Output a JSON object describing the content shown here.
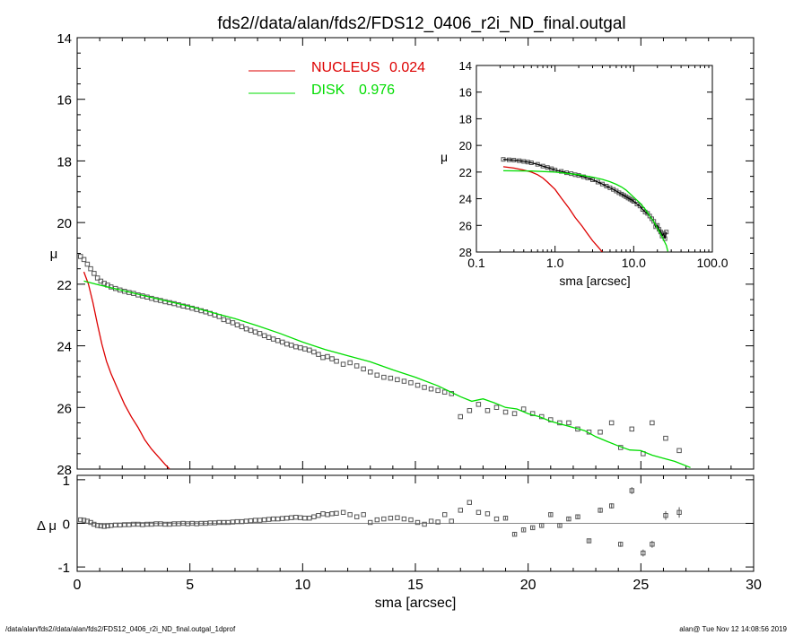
{
  "footer": {
    "left": "/data/alan/fds2//data/alan/fds2/FDS12_0406_r2i_ND_final.outgal_1dprof",
    "right": "alan@  Tue Nov 12 14:08:56 2019"
  },
  "colors": {
    "nucleus": "#dd0000",
    "disk": "#00dd00",
    "data": "#555555",
    "axis": "#000000"
  },
  "chart_data": [
    {
      "type": "scatter",
      "panel": "main",
      "title": "fds2//data/alan/fds2/FDS12_0406_r2i_ND_final.outgal",
      "xlabel": "",
      "ylabel": "μ",
      "xlim": [
        0,
        30
      ],
      "ylim": [
        28,
        14
      ],
      "xticks": [
        0,
        5,
        10,
        15,
        20,
        25,
        30
      ],
      "yticks": [
        14,
        16,
        18,
        20,
        22,
        24,
        26,
        28
      ],
      "legend": [
        {
          "label": "NUCLEUS",
          "value": "0.024",
          "color": "#dd0000"
        },
        {
          "label": "DISK",
          "value": "0.976",
          "color": "#00dd00"
        }
      ],
      "series": [
        {
          "name": "data",
          "x": [
            0.15,
            0.3,
            0.45,
            0.6,
            0.75,
            0.9,
            1.05,
            1.2,
            1.35,
            1.5,
            1.7,
            1.9,
            2.1,
            2.3,
            2.5,
            2.7,
            2.9,
            3.1,
            3.3,
            3.5,
            3.7,
            3.9,
            4.1,
            4.3,
            4.5,
            4.7,
            4.9,
            5.1,
            5.3,
            5.5,
            5.7,
            5.9,
            6.1,
            6.3,
            6.5,
            6.7,
            6.9,
            7.1,
            7.3,
            7.5,
            7.7,
            7.9,
            8.1,
            8.3,
            8.5,
            8.7,
            8.9,
            9.1,
            9.3,
            9.5,
            9.7,
            9.9,
            10.1,
            10.3,
            10.5,
            10.7,
            10.9,
            11.1,
            11.3,
            11.5,
            11.8,
            12.1,
            12.4,
            12.7,
            13.0,
            13.3,
            13.6,
            13.9,
            14.2,
            14.5,
            14.8,
            15.1,
            15.4,
            15.7,
            16.0,
            16.3,
            16.6,
            17.0,
            17.4,
            17.8,
            18.2,
            18.6,
            19.0,
            19.4,
            19.8,
            20.2,
            20.6,
            21.0,
            21.4,
            21.8,
            22.2,
            22.7,
            23.2,
            23.7,
            24.1,
            24.6,
            25.1,
            25.5,
            26.1,
            26.7
          ],
          "y": [
            21.1,
            21.2,
            21.35,
            21.5,
            21.65,
            21.8,
            21.9,
            21.97,
            22.03,
            22.09,
            22.14,
            22.19,
            22.23,
            22.27,
            22.3,
            22.35,
            22.38,
            22.42,
            22.46,
            22.5,
            22.53,
            22.57,
            22.6,
            22.63,
            22.67,
            22.71,
            22.74,
            22.78,
            22.82,
            22.86,
            22.9,
            22.95,
            23.0,
            23.05,
            23.15,
            23.2,
            23.25,
            23.32,
            23.38,
            23.45,
            23.5,
            23.55,
            23.6,
            23.67,
            23.73,
            23.78,
            23.83,
            23.88,
            23.94,
            23.98,
            24.03,
            24.06,
            24.1,
            24.14,
            24.2,
            24.28,
            24.38,
            24.35,
            24.42,
            24.5,
            24.6,
            24.55,
            24.65,
            24.75,
            24.85,
            24.95,
            25.02,
            25.05,
            25.1,
            25.15,
            25.2,
            25.28,
            25.35,
            25.4,
            25.45,
            25.5,
            25.55,
            26.3,
            26.1,
            25.9,
            26.1,
            26.0,
            26.15,
            26.2,
            26.05,
            26.2,
            26.3,
            26.4,
            26.5,
            26.5,
            26.7,
            26.8,
            26.8,
            26.5,
            27.3,
            26.7,
            27.5,
            26.5,
            27.0,
            27.4
          ]
        },
        {
          "name": "NUCLEUS",
          "x": [
            0.3,
            0.5,
            0.7,
            0.9,
            1.1,
            1.3,
            1.5,
            1.8,
            2.1,
            2.4,
            2.7,
            3.0,
            3.3,
            3.6,
            3.9,
            4.1
          ],
          "y": [
            21.6,
            22.0,
            22.6,
            23.3,
            23.95,
            24.5,
            24.9,
            25.4,
            25.9,
            26.3,
            26.65,
            27.05,
            27.35,
            27.6,
            27.85,
            28.0
          ]
        },
        {
          "name": "DISK",
          "x": [
            0.3,
            1.0,
            2.0,
            3.0,
            4.0,
            5.0,
            6.0,
            7.0,
            8.0,
            9.0,
            10.0,
            11.0,
            12.0,
            13.0,
            14.0,
            15.0,
            16.0,
            17.0,
            17.5,
            18.0,
            18.5,
            19.0,
            19.5,
            20.0,
            20.5,
            21.0,
            21.5,
            22.0,
            22.5,
            23.0,
            23.5,
            24.0,
            24.5,
            25.0,
            25.5,
            26.0,
            26.5,
            27.2
          ],
          "y": [
            21.9,
            22.03,
            22.2,
            22.38,
            22.55,
            22.72,
            22.92,
            23.12,
            23.35,
            23.6,
            23.88,
            24.12,
            24.32,
            24.52,
            24.78,
            25.02,
            25.3,
            25.65,
            25.8,
            25.72,
            25.85,
            26.0,
            26.05,
            26.2,
            26.3,
            26.45,
            26.55,
            26.65,
            26.75,
            26.95,
            27.1,
            27.25,
            27.38,
            27.4,
            27.55,
            27.65,
            27.75,
            27.95
          ]
        }
      ]
    },
    {
      "type": "scatter",
      "panel": "residual",
      "xlabel": "sma [arcsec]",
      "ylabel": "Δ μ",
      "xlim": [
        0,
        30
      ],
      "ylim": [
        -1.1,
        1.1
      ],
      "xticks": [
        0,
        5,
        10,
        15,
        20,
        25,
        30
      ],
      "yticks": [
        -1,
        0,
        1
      ],
      "series": [
        {
          "name": "residual",
          "x": [
            0.15,
            0.3,
            0.45,
            0.6,
            0.75,
            0.9,
            1.05,
            1.2,
            1.35,
            1.5,
            1.7,
            1.9,
            2.1,
            2.3,
            2.5,
            2.7,
            2.9,
            3.1,
            3.3,
            3.5,
            3.7,
            3.9,
            4.1,
            4.3,
            4.5,
            4.7,
            4.9,
            5.1,
            5.3,
            5.5,
            5.7,
            5.9,
            6.1,
            6.3,
            6.5,
            6.7,
            6.9,
            7.1,
            7.3,
            7.5,
            7.7,
            7.9,
            8.1,
            8.3,
            8.5,
            8.7,
            8.9,
            9.1,
            9.3,
            9.5,
            9.7,
            9.9,
            10.1,
            10.3,
            10.5,
            10.7,
            10.9,
            11.1,
            11.3,
            11.5,
            11.8,
            12.1,
            12.4,
            12.7,
            13.0,
            13.3,
            13.6,
            13.9,
            14.2,
            14.5,
            14.8,
            15.1,
            15.4,
            15.7,
            16.0,
            16.3,
            16.6,
            17.0,
            17.4,
            17.8,
            18.2,
            18.6,
            19.0,
            19.4,
            19.8,
            20.2,
            20.6,
            21.0,
            21.4,
            21.8,
            22.2,
            22.7,
            23.2,
            23.7,
            24.1,
            24.6,
            25.1,
            25.5,
            26.1,
            26.7
          ],
          "y": [
            0.08,
            0.07,
            0.05,
            0.02,
            -0.02,
            -0.05,
            -0.06,
            -0.07,
            -0.06,
            -0.05,
            -0.04,
            -0.04,
            -0.03,
            -0.03,
            -0.02,
            -0.02,
            -0.03,
            -0.02,
            -0.02,
            -0.01,
            -0.01,
            -0.02,
            -0.02,
            -0.01,
            -0.01,
            0.0,
            -0.01,
            0.0,
            -0.01,
            0.0,
            0.0,
            0.01,
            0.01,
            0.02,
            0.02,
            0.02,
            0.03,
            0.04,
            0.04,
            0.05,
            0.06,
            0.07,
            0.07,
            0.08,
            0.09,
            0.1,
            0.1,
            0.11,
            0.12,
            0.13,
            0.14,
            0.13,
            0.12,
            0.12,
            0.15,
            0.18,
            0.22,
            0.2,
            0.22,
            0.23,
            0.25,
            0.2,
            0.15,
            0.2,
            0.02,
            0.08,
            0.1,
            0.12,
            0.13,
            0.1,
            0.08,
            0.02,
            -0.02,
            0.05,
            0.03,
            0.2,
            0.05,
            0.3,
            0.48,
            0.25,
            0.22,
            0.1,
            0.12,
            -0.25,
            -0.15,
            -0.1,
            -0.05,
            0.2,
            -0.05,
            0.1,
            0.15,
            -0.4,
            0.3,
            0.4,
            -0.48,
            0.75,
            -0.68,
            -0.48,
            0.18,
            0.25
          ],
          "err": [
            0.01,
            0.01,
            0.01,
            0.01,
            0.01,
            0.01,
            0.01,
            0.01,
            0.01,
            0.01,
            0.01,
            0.01,
            0.01,
            0.01,
            0.01,
            0.01,
            0.01,
            0.01,
            0.01,
            0.01,
            0.01,
            0.01,
            0.01,
            0.01,
            0.01,
            0.01,
            0.01,
            0.01,
            0.01,
            0.01,
            0.01,
            0.01,
            0.01,
            0.01,
            0.01,
            0.01,
            0.01,
            0.01,
            0.01,
            0.01,
            0.01,
            0.01,
            0.01,
            0.01,
            0.01,
            0.01,
            0.01,
            0.01,
            0.01,
            0.01,
            0.01,
            0.01,
            0.01,
            0.01,
            0.01,
            0.01,
            0.01,
            0.01,
            0.01,
            0.01,
            0.01,
            0.01,
            0.01,
            0.01,
            0.01,
            0.01,
            0.01,
            0.01,
            0.01,
            0.01,
            0.01,
            0.01,
            0.01,
            0.01,
            0.01,
            0.01,
            0.01,
            0.02,
            0.02,
            0.02,
            0.02,
            0.02,
            0.03,
            0.03,
            0.03,
            0.03,
            0.03,
            0.04,
            0.04,
            0.04,
            0.05,
            0.05,
            0.06,
            0.06,
            0.06,
            0.08,
            0.08,
            0.08,
            0.1,
            0.12
          ]
        }
      ]
    },
    {
      "type": "scatter",
      "panel": "inset",
      "xlabel": "sma [arcsec]",
      "ylabel": "μ",
      "xscale": "log",
      "xlim": [
        0.1,
        100
      ],
      "ylim": [
        28,
        14
      ],
      "xticks": [
        0.1,
        1.0,
        10.0,
        100.0
      ],
      "xticklabels": [
        "0.1",
        "1.0",
        "10.0",
        "100.0"
      ],
      "yticks": [
        14,
        16,
        18,
        20,
        22,
        24,
        26,
        28
      ],
      "series": [
        {
          "name": "data",
          "x": [
            0.22,
            0.26,
            0.3,
            0.35,
            0.4,
            0.45,
            0.5,
            0.6,
            0.7,
            0.8,
            0.9,
            1.0,
            1.2,
            1.4,
            1.6,
            1.8,
            2.0,
            2.3,
            2.6,
            3.0,
            3.5,
            4.0,
            4.5,
            5.0,
            5.5,
            6.0,
            6.5,
            7.0,
            7.5,
            8.0,
            8.5,
            9.0,
            9.5,
            10.0,
            11.0,
            12.0,
            13.0,
            14.0,
            15.0,
            16.0,
            17.0,
            18.0,
            19.0,
            20.0,
            21.0,
            22.0,
            23.0,
            24.0,
            25.0,
            26.0
          ],
          "y": [
            21.05,
            21.08,
            21.1,
            21.15,
            21.2,
            21.25,
            21.3,
            21.42,
            21.55,
            21.65,
            21.75,
            21.85,
            21.95,
            22.05,
            22.12,
            22.2,
            22.25,
            22.35,
            22.45,
            22.58,
            22.75,
            22.9,
            23.05,
            23.18,
            23.3,
            23.42,
            23.55,
            23.65,
            23.75,
            23.85,
            23.95,
            24.03,
            24.1,
            24.2,
            24.4,
            24.55,
            24.8,
            25.0,
            25.1,
            25.3,
            25.5,
            25.7,
            26.1,
            26.0,
            26.3,
            26.5,
            26.8,
            26.6,
            27.0,
            26.5
          ]
        },
        {
          "name": "NUCLEUS",
          "x": [
            0.22,
            0.3,
            0.4,
            0.5,
            0.6,
            0.7,
            0.8,
            1.0,
            1.2,
            1.5,
            1.8,
            2.2,
            2.6,
            3.0,
            3.5,
            4.0
          ],
          "y": [
            21.6,
            21.7,
            21.85,
            22.0,
            22.2,
            22.45,
            22.75,
            23.3,
            23.95,
            24.7,
            25.4,
            26.05,
            26.65,
            27.15,
            27.6,
            28.0
          ]
        },
        {
          "name": "DISK",
          "x": [
            0.22,
            0.5,
            1.0,
            2.0,
            3.0,
            4.0,
            5.0,
            6.0,
            7.0,
            8.0,
            10.0,
            12.0,
            14.0,
            16.0,
            18.0,
            20.0,
            22.0,
            24.0,
            26.0,
            27.2
          ],
          "y": [
            21.9,
            21.92,
            22.0,
            22.2,
            22.38,
            22.55,
            22.72,
            22.92,
            23.12,
            23.35,
            23.88,
            24.32,
            24.78,
            25.3,
            25.72,
            26.2,
            26.65,
            27.1,
            27.5,
            27.95
          ]
        }
      ]
    }
  ]
}
